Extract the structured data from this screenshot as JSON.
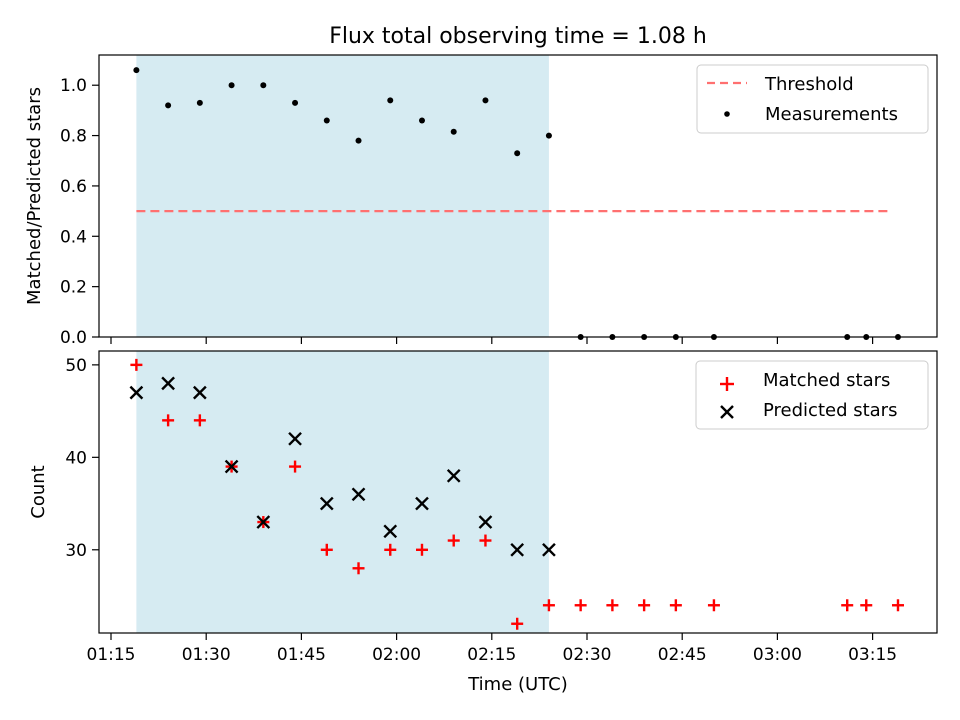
{
  "chart_data": {
    "type": "scatter",
    "title": "Flux total observing time = 1.08 h",
    "xlabel": "Time (UTC)",
    "x_ticks": [
      "01:15",
      "01:30",
      "01:45",
      "02:00",
      "02:15",
      "02:30",
      "02:45",
      "03:00",
      "03:15"
    ],
    "shaded_region": {
      "start": "01:19",
      "end": "02:24",
      "color": "#add8e6"
    },
    "panels": [
      {
        "ylabel": "Matched/Predicted stars",
        "ylim": [
          0,
          1.12
        ],
        "y_ticks": [
          "0.0",
          "0.2",
          "0.4",
          "0.6",
          "0.8",
          "1.0"
        ],
        "legend_position": "top-right",
        "series": [
          {
            "name": "Threshold",
            "kind": "dashed-line",
            "color": "#ff7070",
            "x": [
              "01:19",
              "03:18"
            ],
            "y": [
              0.5,
              0.5
            ]
          },
          {
            "name": "Measurements",
            "kind": "dot",
            "color": "#000000",
            "x": [
              "01:19",
              "01:24",
              "01:29",
              "01:34",
              "01:39",
              "01:44",
              "01:49",
              "01:54",
              "01:59",
              "02:04",
              "02:09",
              "02:14",
              "02:19",
              "02:24",
              "02:29",
              "02:34",
              "02:39",
              "02:44",
              "02:50",
              "03:11",
              "03:14",
              "03:19"
            ],
            "y": [
              1.06,
              0.92,
              0.93,
              1.0,
              1.0,
              0.93,
              0.86,
              0.78,
              0.94,
              0.86,
              0.815,
              0.94,
              0.73,
              0.8,
              0,
              0,
              0,
              0,
              0,
              0,
              0,
              0
            ]
          }
        ]
      },
      {
        "ylabel": "Count",
        "ylim": [
          21,
          51.5
        ],
        "y_ticks": [
          "30",
          "40",
          "50"
        ],
        "legend_position": "top-right",
        "series": [
          {
            "name": "Matched stars",
            "kind": "plus",
            "color": "#ff0000",
            "x": [
              "01:19",
              "01:24",
              "01:29",
              "01:34",
              "01:39",
              "01:44",
              "01:49",
              "01:54",
              "01:59",
              "02:04",
              "02:09",
              "02:14",
              "02:19",
              "02:24",
              "02:29",
              "02:34",
              "02:39",
              "02:44",
              "02:50",
              "03:11",
              "03:14",
              "03:19"
            ],
            "y": [
              50,
              44,
              44,
              39,
              33,
              39,
              30,
              28,
              30,
              30,
              31,
              31,
              22,
              24,
              24,
              24,
              24,
              24,
              24,
              24,
              24,
              24
            ]
          },
          {
            "name": "Predicted stars",
            "kind": "x",
            "color": "#000000",
            "x": [
              "01:19",
              "01:24",
              "01:29",
              "01:34",
              "01:39",
              "01:44",
              "01:49",
              "01:54",
              "01:59",
              "02:04",
              "02:09",
              "02:14",
              "02:19",
              "02:24"
            ],
            "y": [
              47,
              48,
              47,
              39,
              33,
              42,
              35,
              36,
              32,
              35,
              38,
              33,
              30,
              30
            ]
          }
        ]
      }
    ]
  }
}
